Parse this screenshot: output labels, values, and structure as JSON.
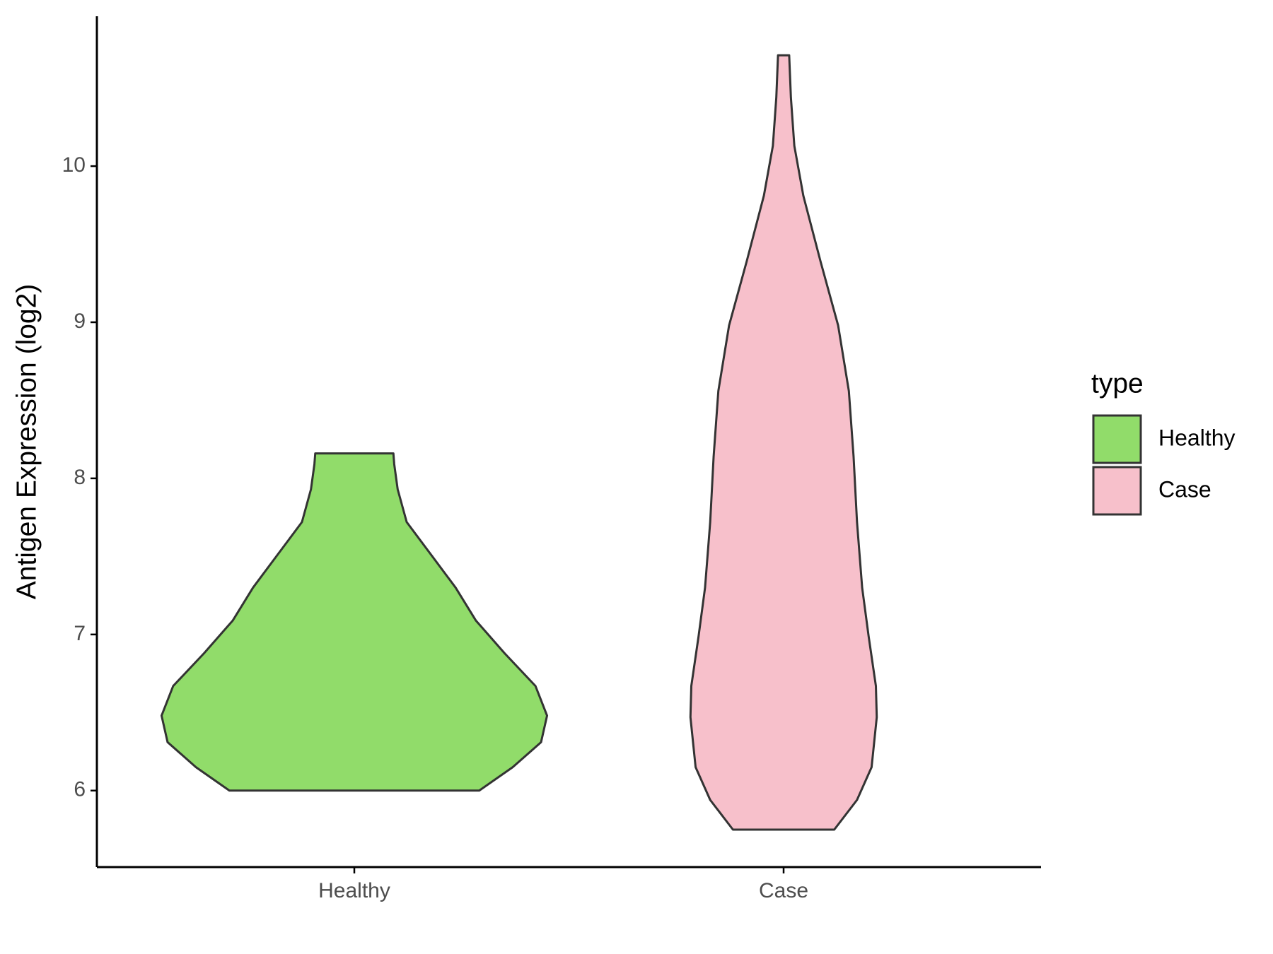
{
  "chart_data": {
    "type": "violin",
    "y_label": "Antigen Expression (log2)",
    "categories": [
      "Healthy",
      "Case"
    ],
    "ylim": [
      5.51,
      10.96
    ],
    "yticks": [
      6,
      7,
      8,
      9,
      10
    ],
    "legend_title": "type",
    "legend": "right",
    "series": [
      {
        "name": "Healthy",
        "color": "#91dc6a",
        "y": [
          6.0,
          6.15,
          6.31,
          6.48,
          6.67,
          6.88,
          7.09,
          7.3,
          7.51,
          7.72,
          7.93,
          8.09,
          8.16
        ],
        "half_width": [
          0.291,
          0.369,
          0.435,
          0.449,
          0.422,
          0.35,
          0.283,
          0.236,
          0.179,
          0.122,
          0.101,
          0.093,
          0.091
        ]
      },
      {
        "name": "Case",
        "color": "#f7c0cb",
        "y": [
          5.75,
          5.94,
          6.15,
          6.47,
          6.67,
          6.99,
          7.3,
          7.72,
          8.14,
          8.56,
          8.98,
          9.39,
          9.81,
          10.13,
          10.44,
          10.71
        ],
        "half_width": [
          0.118,
          0.171,
          0.205,
          0.217,
          0.215,
          0.198,
          0.183,
          0.171,
          0.163,
          0.152,
          0.127,
          0.086,
          0.046,
          0.025,
          0.017,
          0.013
        ]
      }
    ]
  }
}
